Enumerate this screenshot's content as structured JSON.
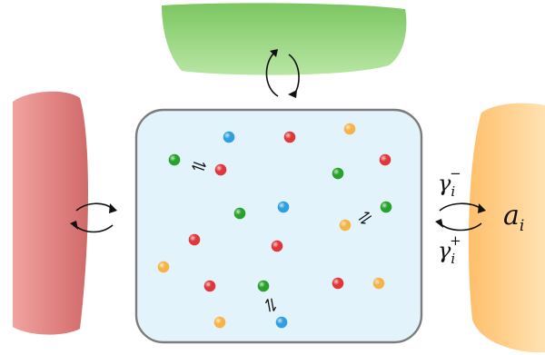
{
  "reservoirs": {
    "top": {
      "color": "#7cc661",
      "highlight": "#b8e6a4"
    },
    "left": {
      "color": "#d06a6a",
      "highlight": "#f2a3a0"
    },
    "right": {
      "color": "#ffbf6a",
      "highlight": "#ffe2b3"
    }
  },
  "container": {
    "fill": "#e3f3fc",
    "stroke": "#7c7c7c"
  },
  "particle_colors": {
    "blue": "#2f9fe0",
    "red": "#e0383a",
    "green": "#27a22a",
    "yellow": "#f6b347"
  },
  "particles": [
    {
      "species": "blue"
    },
    {
      "species": "red"
    },
    {
      "species": "yellow"
    },
    {
      "species": "green"
    },
    {
      "species": "red"
    },
    {
      "species": "green"
    },
    {
      "species": "red"
    },
    {
      "species": "green"
    },
    {
      "species": "blue"
    },
    {
      "species": "green"
    },
    {
      "species": "yellow"
    },
    {
      "species": "red"
    },
    {
      "species": "red"
    },
    {
      "species": "yellow"
    },
    {
      "species": "red"
    },
    {
      "species": "green"
    },
    {
      "species": "red"
    },
    {
      "species": "yellow"
    },
    {
      "species": "blue"
    },
    {
      "species": "yellow"
    }
  ],
  "labels": {
    "gamma_minus": {
      "base": "γ",
      "sub": "i",
      "sup": "−"
    },
    "gamma_plus": {
      "base": "γ",
      "sub": "i",
      "sup": "+"
    },
    "activity": {
      "base": "a",
      "sub": "i"
    }
  }
}
